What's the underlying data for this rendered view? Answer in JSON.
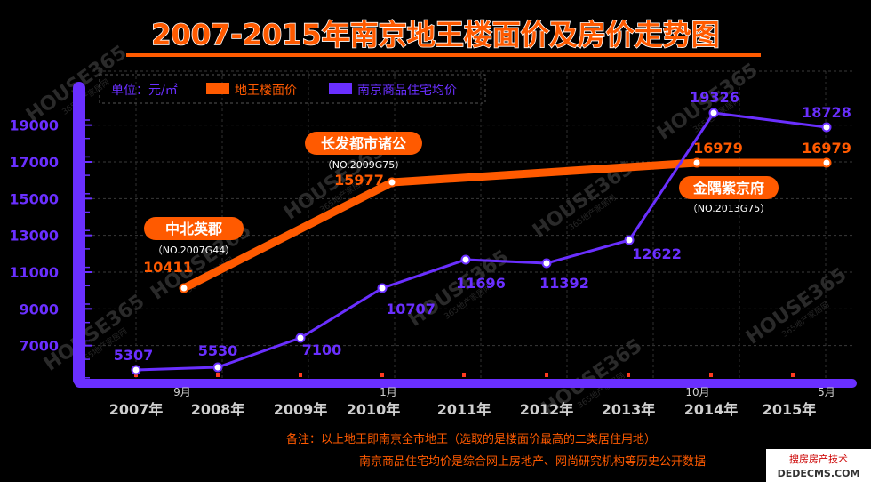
{
  "chart_data": {
    "type": "line",
    "title": "2007-2015年南京地王楼面价及房价走势图",
    "unit_label": "单位：元/㎡",
    "legend_position": "top-left",
    "y_ticks": [
      7000,
      9000,
      11000,
      13000,
      15000,
      17000,
      19000
    ],
    "ylim": [
      5000,
      20000
    ],
    "x_ticks": [
      {
        "x": 2007,
        "label": "2007年"
      },
      {
        "x": 2008,
        "label": "2008年"
      },
      {
        "x": 2009,
        "label": "2009年"
      },
      {
        "x": 2010,
        "label": "2010年"
      },
      {
        "x": 2011,
        "label": "2011年"
      },
      {
        "x": 2012,
        "label": "2012年"
      },
      {
        "x": 2013,
        "label": "2013年"
      },
      {
        "x": 2014,
        "label": "2014年"
      },
      {
        "x": 2015,
        "label": "2015年"
      }
    ],
    "month_labels": [
      {
        "x": 2007.6,
        "label": "9月"
      },
      {
        "x": 2010.0,
        "label": "1月"
      },
      {
        "x": 2014.0,
        "label": "10月"
      },
      {
        "x": 2015.0,
        "label": "5月"
      }
    ],
    "series": [
      {
        "name": "地王楼面价",
        "color": "#ff5a00",
        "points": [
          {
            "x": 2007.6,
            "y": 10411,
            "label": "10411"
          },
          {
            "x": 2010.2,
            "y": 15977,
            "label": "15977"
          },
          {
            "x": 2014.0,
            "y": 16979,
            "label": "16979"
          },
          {
            "x": 2015.0,
            "y": 16979,
            "label": "16979"
          }
        ]
      },
      {
        "name": "南京商品住宅均价",
        "color": "#6a2fff",
        "points": [
          {
            "x": 2007.0,
            "y": 5307,
            "label": "5307"
          },
          {
            "x": 2008.0,
            "y": 5530,
            "label": "5530"
          },
          {
            "x": 2009.0,
            "y": 7100,
            "label": "7100"
          },
          {
            "x": 2010.0,
            "y": 10707,
            "label": "10707"
          },
          {
            "x": 2011.0,
            "y": 11696,
            "label": "11696"
          },
          {
            "x": 2012.0,
            "y": 11392,
            "label": "11392"
          },
          {
            "x": 2013.0,
            "y": 12622,
            "label": "12622"
          },
          {
            "x": 2014.0,
            "y": 19326,
            "label": "19326"
          },
          {
            "x": 2015.0,
            "y": 18728,
            "label": "18728"
          }
        ]
      }
    ],
    "annotations": [
      {
        "name": "中北英郡",
        "code": "（NO.2007G44）",
        "x": 2007.4,
        "y": 12900
      },
      {
        "name": "长发都市诸公",
        "code": "（NO.2009G75）",
        "x": 2010.0,
        "y": 17750
      },
      {
        "name": "金隅紫京府",
        "code": "（NO.2013G75）",
        "x": 2014.7,
        "y": 15500
      }
    ],
    "notes": [
      "备注：以上地王即南京全市地王（选取的是楼面价最高的二类居住用地）",
      "南京商品住宅均价是综合网上房地产、网尚研究机构等历史公开数据"
    ],
    "grid": true
  },
  "watermark": {
    "brand": "HOUSE365",
    "tagline": "365地产家居网"
  },
  "corner_watermark": {
    "line1": "搜房房产技术",
    "line2": "DEDECMS.COM"
  }
}
